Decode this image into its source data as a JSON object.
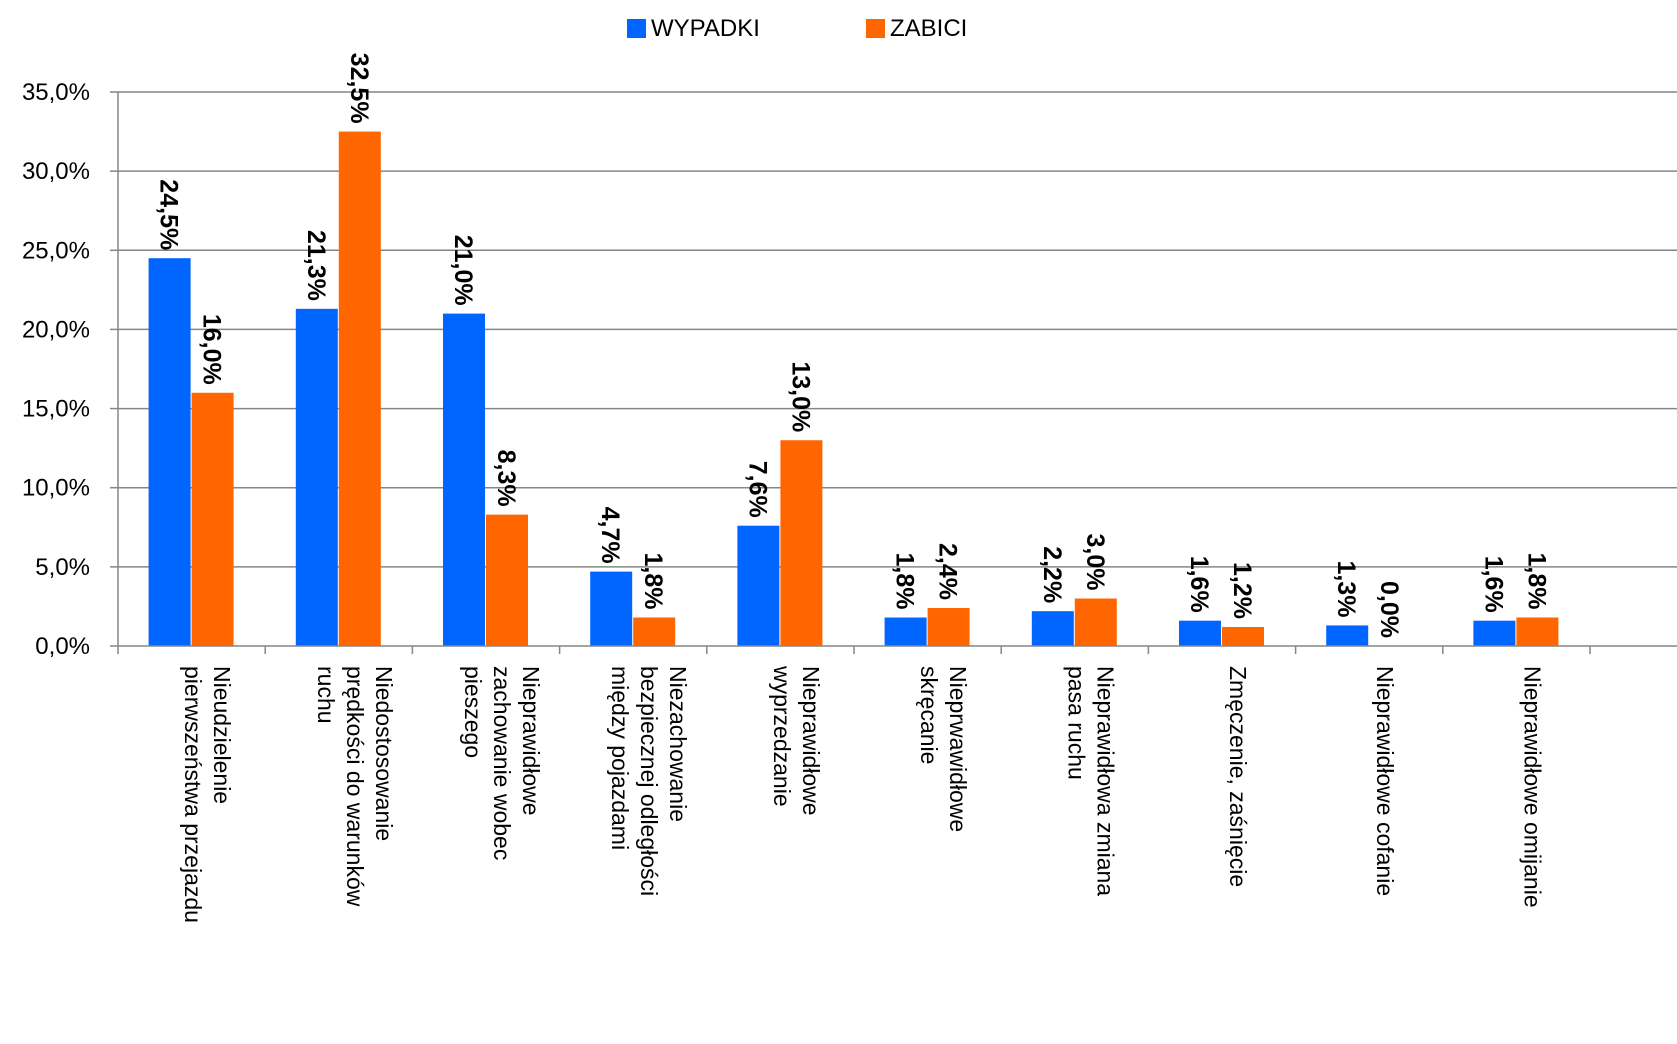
{
  "chart_data": {
    "type": "bar",
    "title": "",
    "xlabel": "",
    "ylabel": "",
    "ylim": [
      0,
      35
    ],
    "y_tick_step": 5,
    "y_tick_labels": [
      "0,0%",
      "5,0%",
      "10,0%",
      "15,0%",
      "20,0%",
      "25,0%",
      "30,0%",
      "35,0%"
    ],
    "grid": true,
    "legend_position": "top-center",
    "categories": [
      [
        "Nieudzielenie",
        "pierwszeństwa przejazdu"
      ],
      [
        "Niedostosowanie",
        "prędkości do warunków",
        "ruchu"
      ],
      [
        "Nieprawidłowe",
        "zachowanie wobec",
        "pieszego"
      ],
      [
        "Niezachowanie",
        "bezpiecznej  odległości",
        "między pojazdami"
      ],
      [
        "Nieprawidłowe",
        "wyprzedzanie"
      ],
      [
        "Nieprwawidłowe",
        "skręcanie"
      ],
      [
        "Nieprawidłowa zmiana",
        "pasa ruchu"
      ],
      [
        "Zmęczenie,  zaśnięcie"
      ],
      [
        "Nieprawidłowe cofanie"
      ],
      [
        "Nieprawidłowe omijanie"
      ]
    ],
    "series": [
      {
        "name": "WYPADKI",
        "color": "#0066FF",
        "values": [
          24.5,
          21.3,
          21.0,
          4.7,
          7.6,
          1.8,
          2.2,
          1.6,
          1.3,
          1.6
        ],
        "labels": [
          "24,5%",
          "21,3%",
          "21,0%",
          "4,7%",
          "7,6%",
          "1,8%",
          "2,2%",
          "1,6%",
          "1,3%",
          "1,6%"
        ]
      },
      {
        "name": "ZABICI",
        "color": "#FF6600",
        "values": [
          16.0,
          32.5,
          8.3,
          1.8,
          13.0,
          2.4,
          3.0,
          1.2,
          0.0,
          1.8
        ],
        "labels": [
          "16,0%",
          "32,5%",
          "8,3%",
          "1,8%",
          "13,0%",
          "2,4%",
          "3,0%",
          "1,2%",
          "0,0%",
          "1,8%"
        ]
      }
    ]
  }
}
